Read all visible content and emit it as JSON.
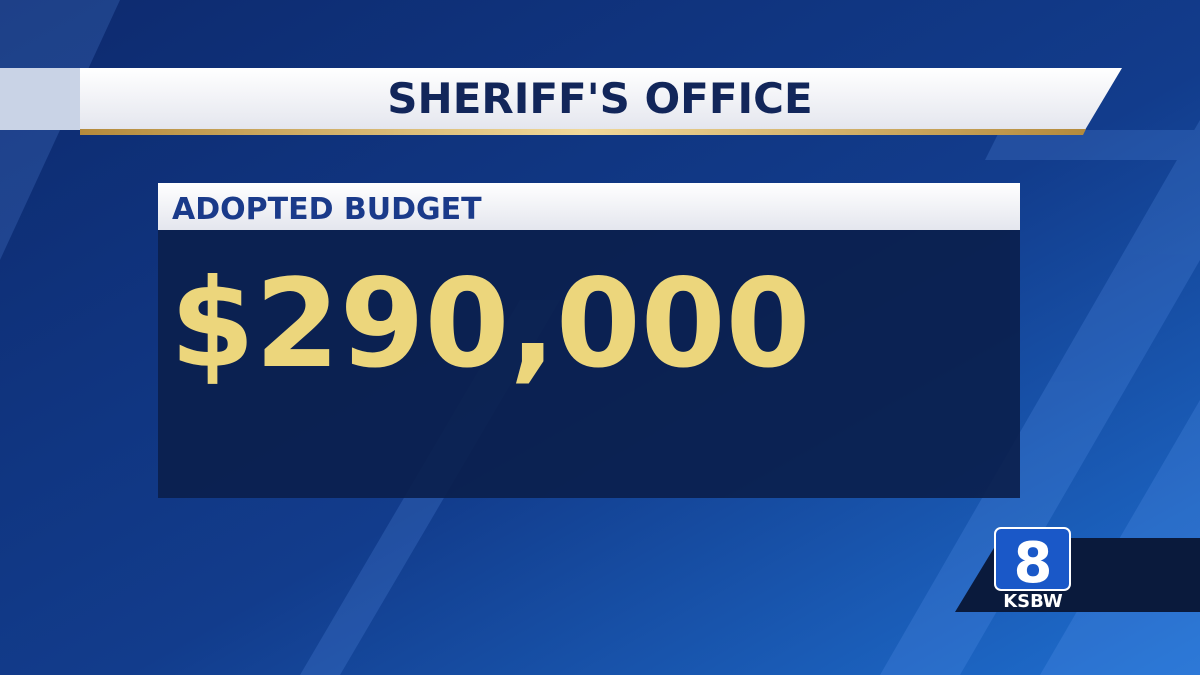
{
  "header": {
    "title": "SHERIFF'S OFFICE"
  },
  "panel": {
    "label": "ADOPTED BUDGET",
    "amount": "$290,000"
  },
  "logo": {
    "number": "8",
    "call_sign": "KSBW"
  }
}
